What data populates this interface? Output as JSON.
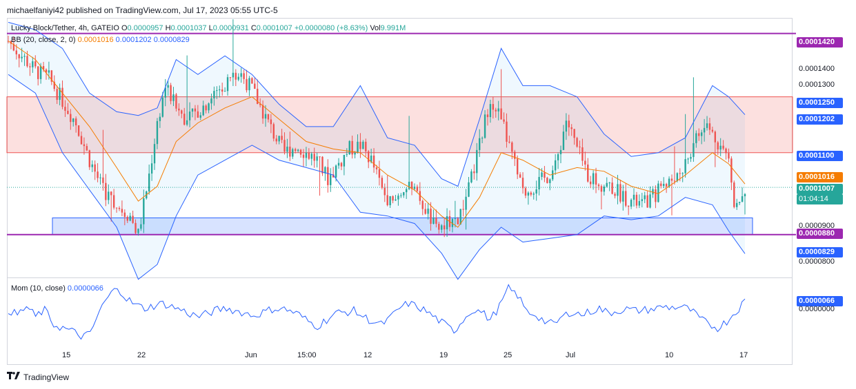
{
  "header": {
    "publisher": "michaelfaniyi42 published on TradingView.com, Jul 17, 2023 05:55 UTC-5"
  },
  "footer": {
    "brand": "TradingView",
    "logo_icon": "tradingview-logo-icon"
  },
  "legend": {
    "symbol": "Lucky Block/Tether, 4h, GATEIO",
    "ohlc": {
      "o_label": "O",
      "o": "0.0000957",
      "h_label": "H",
      "h": "0.0001037",
      "l_label": "L",
      "l": "0.0000931",
      "c_label": "C",
      "c": "0.0001007",
      "change": "+0.0000080 (+8.63%)",
      "vol_label": "Vol",
      "vol": "9.991M"
    },
    "bb": {
      "label": "BB (20, close, 2, 0)",
      "basis": "0.0001016",
      "upper": "0.0001202",
      "lower": "0.0000829"
    },
    "mom": {
      "label": "Mom (10, close)",
      "value": "0.0000066"
    }
  },
  "price_axis": {
    "ticks": [
      {
        "label": "0.0001400",
        "value": 0.00014
      },
      {
        "label": "0.0001300",
        "value": 0.00013
      },
      {
        "label": "0.0000900",
        "value": 9e-05
      },
      {
        "label": "0.0000800",
        "value": 8e-05
      }
    ],
    "tags": [
      {
        "label": "0.0001420",
        "value": 0.000142,
        "color": "#9c27b0"
      },
      {
        "label": "0.0001250",
        "value": 0.000125,
        "color": "#2962ff"
      },
      {
        "label": "0.0001202",
        "value": 0.0001202,
        "color": "#2962ff"
      },
      {
        "label": "0.0001100",
        "value": 0.00011,
        "color": "#2962ff"
      },
      {
        "label": "0.0001016",
        "value": 0.0001016,
        "color": "#f57c00"
      },
      {
        "label": "0.0001007",
        "value": 0.0001007,
        "color": "#26a69a"
      },
      {
        "label": "01:04:14",
        "value": 9.78e-05,
        "color": "#26a69a"
      },
      {
        "label": "0.0000880",
        "value": 8.8e-05,
        "color": "#9c27b0"
      },
      {
        "label": "0.0000829",
        "value": 8.29e-05,
        "color": "#2962ff"
      }
    ],
    "mom_tag": {
      "label": "0.0000066",
      "color": "#2962ff"
    },
    "mom_tick": {
      "label": "0.0000000"
    }
  },
  "time_axis": [
    "15",
    "22",
    "Jun",
    "15:00",
    "12",
    "19",
    "25",
    "Jul",
    "10",
    "17"
  ],
  "chart_data": [
    {
      "type": "candlestick",
      "title": "Lucky Block/Tether, 4h, GATEIO",
      "x_ticks": [
        "15",
        "22",
        "Jun",
        "15:00",
        "12",
        "19",
        "25",
        "Jul",
        "10",
        "17"
      ],
      "ylim": [
        7.65e-05,
        0.000146
      ],
      "horizontal_levels": [
        {
          "value": 0.000142,
          "color": "#9c27b0"
        },
        {
          "value": 8.8e-05,
          "color": "#9c27b0"
        }
      ],
      "zones": [
        {
          "from": 0.00011,
          "to": 0.000125,
          "color": "#ef5350"
        },
        {
          "from": 8.8e-05,
          "to": 9.25e-05,
          "color": "#2962ff"
        }
      ],
      "series": [
        {
          "name": "Close",
          "points": [
            [
              0,
              0.00014
            ],
            [
              5,
              0.000136
            ],
            [
              10,
              0.000132
            ],
            [
              15,
              0.00013
            ],
            [
              20,
              0.000124
            ],
            [
              25,
              0.000118
            ],
            [
              30,
              0.000108
            ],
            [
              35,
              0.0001
            ],
            [
              40,
              9.6e-05
            ],
            [
              45,
              9.3e-05
            ],
            [
              48,
              8.8e-05
            ],
            [
              52,
              0.000104
            ],
            [
              55,
              0.000118
            ],
            [
              58,
              0.000128
            ],
            [
              62,
              0.000122
            ],
            [
              66,
              0.000119
            ],
            [
              70,
              0.000121
            ],
            [
              74,
              0.000124
            ],
            [
              78,
              0.000127
            ],
            [
              82,
              0.00013
            ],
            [
              86,
              0.000131
            ],
            [
              90,
              0.000127
            ],
            [
              94,
              0.000121
            ],
            [
              98,
              0.000115
            ],
            [
              102,
              0.00011
            ],
            [
              106,
              0.000112
            ],
            [
              110,
              0.00011
            ],
            [
              114,
              0.000108
            ],
            [
              118,
              0.000103
            ],
            [
              122,
              0.000107
            ],
            [
              126,
              0.000111
            ],
            [
              130,
              0.000112
            ],
            [
              134,
              0.000108
            ],
            [
              138,
              0.0001
            ],
            [
              142,
              9.6e-05
            ],
            [
              146,
              0.000101
            ],
            [
              150,
              9.9e-05
            ],
            [
              154,
              9.5e-05
            ],
            [
              158,
              8.9e-05
            ],
            [
              162,
              9.1e-05
            ],
            [
              166,
              9.2e-05
            ],
            [
              170,
              0.0001
            ],
            [
              174,
              0.000112
            ],
            [
              178,
              0.000125
            ],
            [
              182,
              0.000119
            ],
            [
              186,
              0.000109
            ],
            [
              190,
              9.9e-05
            ],
            [
              194,
              0.000101
            ],
            [
              198,
              0.000103
            ],
            [
              202,
              0.000106
            ],
            [
              206,
              0.000119
            ],
            [
              210,
              0.000111
            ],
            [
              214,
              0.000104
            ],
            [
              218,
              0.000102
            ],
            [
              222,
              0.000101
            ],
            [
              226,
              9.9e-05
            ],
            [
              230,
              9.7e-05
            ],
            [
              234,
              9.6e-05
            ],
            [
              238,
              9.8e-05
            ],
            [
              242,
              0.000102
            ],
            [
              246,
              0.000103
            ],
            [
              250,
              0.000107
            ],
            [
              254,
              0.000114
            ],
            [
              258,
              0.000117
            ],
            [
              262,
              0.000113
            ],
            [
              266,
              0.000108
            ],
            [
              268,
              9.7e-05
            ],
            [
              270,
              9.8e-05
            ],
            [
              272,
              0.0001
            ]
          ]
        },
        {
          "name": "BB basis",
          "points": [
            [
              0,
              0.00014
            ],
            [
              10,
              0.000135
            ],
            [
              20,
              0.000126
            ],
            [
              30,
              0.000117
            ],
            [
              40,
              0.000106
            ],
            [
              48,
              9.7e-05
            ],
            [
              55,
              0.000101
            ],
            [
              62,
              0.000113
            ],
            [
              70,
              0.000118
            ],
            [
              80,
              0.000122
            ],
            [
              90,
              0.000125
            ],
            [
              100,
              0.000119
            ],
            [
              110,
              0.000113
            ],
            [
              120,
              0.000111
            ],
            [
              130,
              0.00011
            ],
            [
              140,
              0.000104
            ],
            [
              150,
              0.0001
            ],
            [
              160,
              9.3e-05
            ],
            [
              166,
              9e-05
            ],
            [
              174,
              9.8e-05
            ],
            [
              182,
              0.00011
            ],
            [
              190,
              0.000108
            ],
            [
              200,
              0.000104
            ],
            [
              210,
              0.000106
            ],
            [
              220,
              0.000105
            ],
            [
              230,
              0.000101
            ],
            [
              240,
              9.9e-05
            ],
            [
              250,
              0.000104
            ],
            [
              260,
              0.00011
            ],
            [
              266,
              0.000107
            ],
            [
              272,
              0.0001016
            ]
          ]
        },
        {
          "name": "BB upper",
          "points": [
            [
              0,
              0.000145
            ],
            [
              10,
              0.000143
            ],
            [
              20,
              0.000138
            ],
            [
              30,
              0.000126
            ],
            [
              40,
              0.000121
            ],
            [
              48,
              0.00012
            ],
            [
              55,
              0.000122
            ],
            [
              62,
              0.000135
            ],
            [
              70,
              0.000131
            ],
            [
              80,
              0.000136
            ],
            [
              90,
              0.000131
            ],
            [
              100,
              0.000123
            ],
            [
              110,
              0.000117
            ],
            [
              120,
              0.000117
            ],
            [
              130,
              0.000128
            ],
            [
              140,
              0.000114
            ],
            [
              150,
              0.000112
            ],
            [
              160,
              0.000103
            ],
            [
              166,
              0.000101
            ],
            [
              174,
              0.000119
            ],
            [
              182,
              0.000138
            ],
            [
              190,
              0.000128
            ],
            [
              200,
              0.000128
            ],
            [
              210,
              0.000125
            ],
            [
              220,
              0.000115
            ],
            [
              230,
              0.000109
            ],
            [
              240,
              0.00011
            ],
            [
              250,
              0.000114
            ],
            [
              260,
              0.000128
            ],
            [
              266,
              0.000125
            ],
            [
              272,
              0.0001202
            ]
          ]
        },
        {
          "name": "BB lower",
          "points": [
            [
              0,
              0.000131
            ],
            [
              10,
              0.000126
            ],
            [
              20,
              0.00011
            ],
            [
              30,
              0.0001
            ],
            [
              40,
              9e-05
            ],
            [
              48,
              7.6e-05
            ],
            [
              55,
              8e-05
            ],
            [
              62,
              9.3e-05
            ],
            [
              70,
              0.000104
            ],
            [
              80,
              0.000108
            ],
            [
              90,
              0.000112
            ],
            [
              100,
              0.000108
            ],
            [
              110,
              0.000106
            ],
            [
              120,
              0.000104
            ],
            [
              130,
              9.4e-05
            ],
            [
              140,
              9.3e-05
            ],
            [
              150,
              9.1e-05
            ],
            [
              160,
              8.3e-05
            ],
            [
              166,
              7.6e-05
            ],
            [
              174,
              8.4e-05
            ],
            [
              182,
              9e-05
            ],
            [
              190,
              8.6e-05
            ],
            [
              200,
              8.7e-05
            ],
            [
              210,
              8.8e-05
            ],
            [
              220,
              9.3e-05
            ],
            [
              230,
              9.2e-05
            ],
            [
              240,
              9.3e-05
            ],
            [
              250,
              9.8e-05
            ],
            [
              260,
              9.6e-05
            ],
            [
              266,
              8.9e-05
            ],
            [
              272,
              8.29e-05
            ]
          ]
        }
      ]
    },
    {
      "type": "line",
      "title": "Mom (10, close)",
      "x_ticks": [
        "15",
        "22",
        "Jun",
        "15:00",
        "12",
        "19",
        "25",
        "Jul",
        "10",
        "17"
      ],
      "ylim": [
        -2e-05,
        2e-05
      ],
      "series": [
        {
          "name": "Mom",
          "values": [
            1e-06,
            -2e-06,
            3e-06,
            -3e-06,
            1e-06,
            -8e-06,
            -1e-05,
            -1.2e-05,
            -1.5e-05,
            -1.4e-05,
            0.0,
            9e-06,
            1.5e-05,
            8e-06,
            4e-06,
            2e-06,
            3.5e-06,
            5e-06,
            3e-06,
            1e-06,
            -1.5e-06,
            -3e-06,
            -1e-06,
            1e-06,
            2e-06,
            5e-07,
            -1e-06,
            -2.5e-06,
            -5e-07,
            1.5e-06,
            2e-06,
            5e-07,
            -2e-06,
            -6e-06,
            -9e-06,
            -5e-06,
            -1e-06,
            -5e-07,
            5e-07,
            -3e-06,
            -6e-06,
            -8e-06,
            -4e-06,
            2e-06,
            5e-06,
            3e-06,
            0.0,
            -4e-06,
            -8e-06,
            -1.2e-05,
            -5e-06,
            1e-06,
            0.0,
            -5e-06,
            3e-06,
            1.4e-05,
            1e-05,
            0.0,
            -2e-06,
            -6e-06,
            -8e-06,
            -3e-06,
            0.0,
            -2e-06,
            0.0,
            2e-06,
            -1e-06,
            5e-07,
            1.5e-06,
            5e-07,
            1e-06,
            1.5e-06,
            3e-06,
            2.5e-06,
            3e-06,
            1e-06,
            -4e-06,
            -8e-06,
            -1e-05,
            -6e-06,
            0.0,
            6.6e-06
          ]
        }
      ]
    }
  ]
}
